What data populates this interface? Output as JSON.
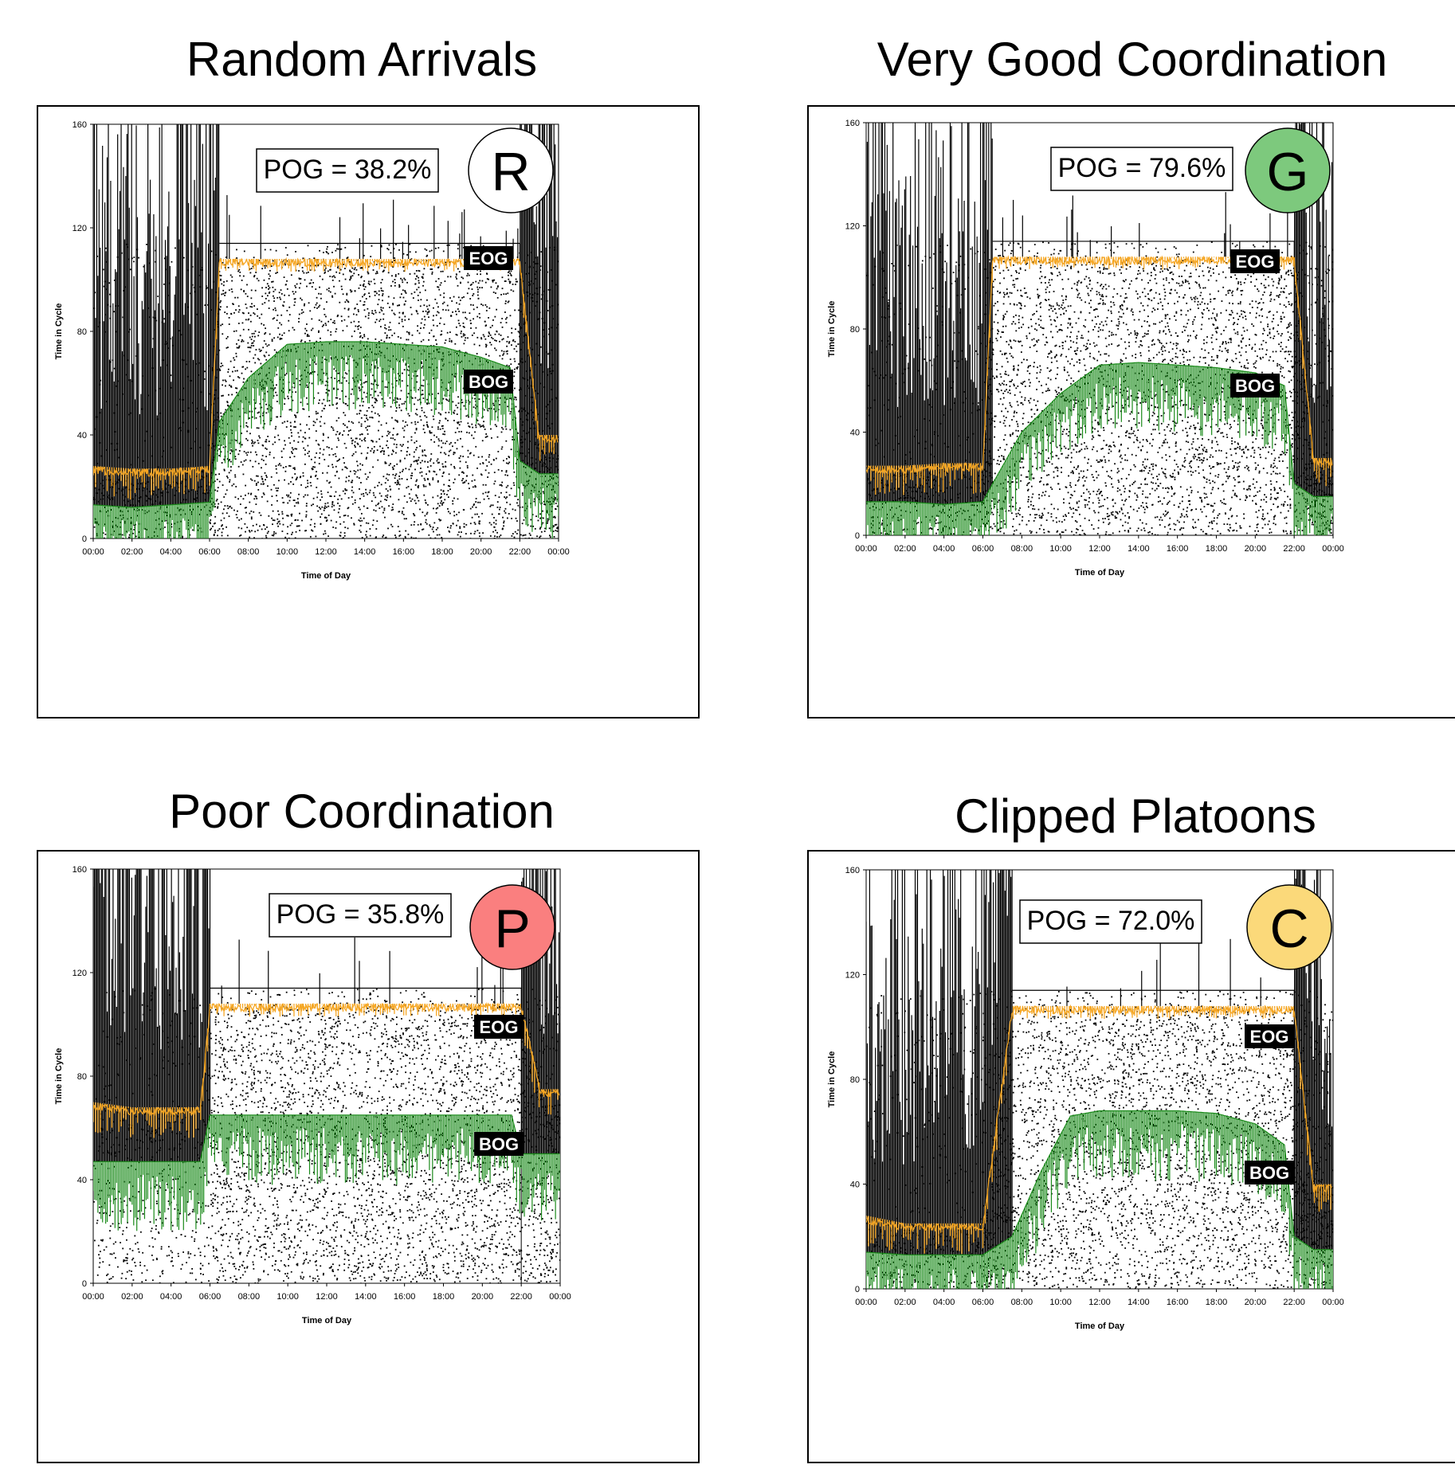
{
  "charts": [
    {
      "id": "random",
      "title": "Random Arrivals",
      "pog_label": "POG = 38.2%",
      "badge_letter": "R",
      "badge_color": "#ffffff",
      "eog_label": "EOG",
      "bog_label": "BOG",
      "xlabel": "Time of Day",
      "ylabel": "Time in Cycle"
    },
    {
      "id": "good",
      "title": "Very Good Coordination",
      "pog_label": "POG = 79.6%",
      "badge_letter": "G",
      "badge_color": "#7dc97d",
      "eog_label": "EOG",
      "bog_label": "BOG",
      "xlabel": "Time of Day",
      "ylabel": "Time in Cycle"
    },
    {
      "id": "poor",
      "title": "Poor Coordination",
      "pog_label": "POG = 35.8%",
      "badge_letter": "P",
      "badge_color": "#fa7f7f",
      "eog_label": "EOG",
      "bog_label": "BOG",
      "xlabel": "Time of Day",
      "ylabel": "Time in Cycle"
    },
    {
      "id": "clipped",
      "title": "Clipped Platoons",
      "pog_label": "POG = 72.0%",
      "badge_letter": "C",
      "badge_color": "#fbd97a",
      "eog_label": "EOG",
      "bog_label": "BOG",
      "xlabel": "Time of Day",
      "ylabel": "Time in Cycle"
    }
  ],
  "colors": {
    "arrivals": "#000000",
    "eog": "#f5a623",
    "bog": "#1a8a1a"
  },
  "chart_data": [
    {
      "type": "scatter",
      "title": "Random Arrivals",
      "xlabel": "Time of Day",
      "ylabel": "Time in Cycle",
      "x_tick_labels": [
        "00:00",
        "02:00",
        "04:00",
        "06:00",
        "08:00",
        "10:00",
        "12:00",
        "14:00",
        "16:00",
        "18:00",
        "20:00",
        "22:00",
        "00:00"
      ],
      "y_ticks": [
        0,
        40,
        80,
        120,
        160
      ],
      "xlim": [
        0,
        24
      ],
      "ylim": [
        0,
        160
      ],
      "series": [
        {
          "name": "EOG",
          "x": [
            0,
            2,
            4,
            6,
            6.5,
            10,
            14,
            18,
            21.5,
            22,
            23,
            24
          ],
          "y": [
            28,
            27,
            27,
            28,
            108,
            108,
            108,
            108,
            108,
            108,
            40,
            40
          ]
        },
        {
          "name": "BOG",
          "x": [
            0,
            2,
            4,
            6,
            6.5,
            8,
            10,
            12,
            14,
            16,
            18,
            20,
            21.5,
            22,
            23,
            24
          ],
          "y": [
            13,
            12,
            13,
            14,
            45,
            62,
            75,
            76,
            76,
            75,
            74,
            70,
            66,
            30,
            25,
            25
          ]
        }
      ],
      "annotations": [
        "POG = 38.2%",
        "EOG",
        "BOG"
      ]
    },
    {
      "type": "scatter",
      "title": "Very Good Coordination",
      "xlabel": "Time of Day",
      "ylabel": "Time in Cycle",
      "x_tick_labels": [
        "00:00",
        "02:00",
        "04:00",
        "06:00",
        "08:00",
        "10:00",
        "12:00",
        "14:00",
        "16:00",
        "18:00",
        "20:00",
        "22:00",
        "00:00"
      ],
      "y_ticks": [
        0,
        40,
        80,
        120,
        160
      ],
      "xlim": [
        0,
        24
      ],
      "ylim": [
        0,
        160
      ],
      "series": [
        {
          "name": "EOG",
          "x": [
            2,
            4,
            6,
            6.5,
            10,
            14,
            18,
            21.5,
            22,
            23,
            24
          ],
          "y": [
            27,
            28,
            28,
            108,
            108,
            108,
            108,
            108,
            108,
            30,
            30
          ]
        },
        {
          "name": "BOG",
          "x": [
            2,
            4,
            6,
            6.5,
            8,
            10,
            12,
            14,
            16,
            18,
            20,
            21.5,
            22,
            23,
            24
          ],
          "y": [
            13,
            12,
            13,
            20,
            40,
            55,
            66,
            67,
            66,
            65,
            63,
            58,
            20,
            15,
            15
          ]
        }
      ],
      "annotations": [
        "POG = 79.6%",
        "EOG",
        "BOG"
      ]
    },
    {
      "type": "scatter",
      "title": "Poor Coordination",
      "xlabel": "Time of Day",
      "ylabel": "Time in Cycle",
      "x_tick_labels": [
        "00:00",
        "02:00",
        "04:00",
        "06:00",
        "08:00",
        "10:00",
        "12:00",
        "14:00",
        "16:00",
        "18:00",
        "20:00",
        "22:00",
        "00:00"
      ],
      "y_ticks": [
        0,
        40,
        80,
        120,
        160
      ],
      "xlim": [
        0,
        24
      ],
      "ylim": [
        0,
        160
      ],
      "series": [
        {
          "name": "EOG",
          "x": [
            0,
            2,
            4,
            5.5,
            6,
            10,
            14,
            18,
            21.5,
            22,
            23,
            24
          ],
          "y": [
            70,
            68,
            68,
            68,
            108,
            108,
            108,
            108,
            108,
            108,
            75,
            75
          ]
        },
        {
          "name": "BOG",
          "x": [
            0,
            2,
            4,
            5.5,
            6,
            8,
            12,
            16,
            20,
            21.5,
            22,
            23,
            24
          ],
          "y": [
            47,
            47,
            47,
            47,
            65,
            65,
            65,
            65,
            65,
            65,
            50,
            50,
            50
          ]
        }
      ],
      "annotations": [
        "POG = 35.8%",
        "EOG",
        "BOG"
      ]
    },
    {
      "type": "scatter",
      "title": "Clipped Platoons",
      "xlabel": "Time of Day",
      "ylabel": "Time in Cycle",
      "x_tick_labels": [
        "00:00",
        "02:00",
        "04:00",
        "06:00",
        "08:00",
        "10:00",
        "12:00",
        "14:00",
        "16:00",
        "18:00",
        "20:00",
        "22:00",
        "00:00"
      ],
      "y_ticks": [
        0,
        40,
        80,
        120,
        160
      ],
      "xlim": [
        0,
        24
      ],
      "ylim": [
        0,
        160
      ],
      "series": [
        {
          "name": "EOG",
          "x": [
            0,
            2,
            4,
            6,
            7.5,
            10,
            14,
            18,
            21.5,
            22,
            23,
            24
          ],
          "y": [
            28,
            25,
            25,
            25,
            108,
            108,
            108,
            108,
            108,
            108,
            40,
            40
          ]
        },
        {
          "name": "BOG",
          "x": [
            0,
            2,
            4,
            6,
            7.5,
            9,
            10.5,
            12,
            14,
            16,
            18,
            20,
            21.5,
            22,
            23,
            24
          ],
          "y": [
            14,
            13,
            13,
            13,
            20,
            45,
            66,
            68,
            68,
            68,
            67,
            63,
            55,
            20,
            15,
            15
          ]
        }
      ],
      "annotations": [
        "POG = 72.0%",
        "EOG",
        "BOG"
      ]
    }
  ]
}
